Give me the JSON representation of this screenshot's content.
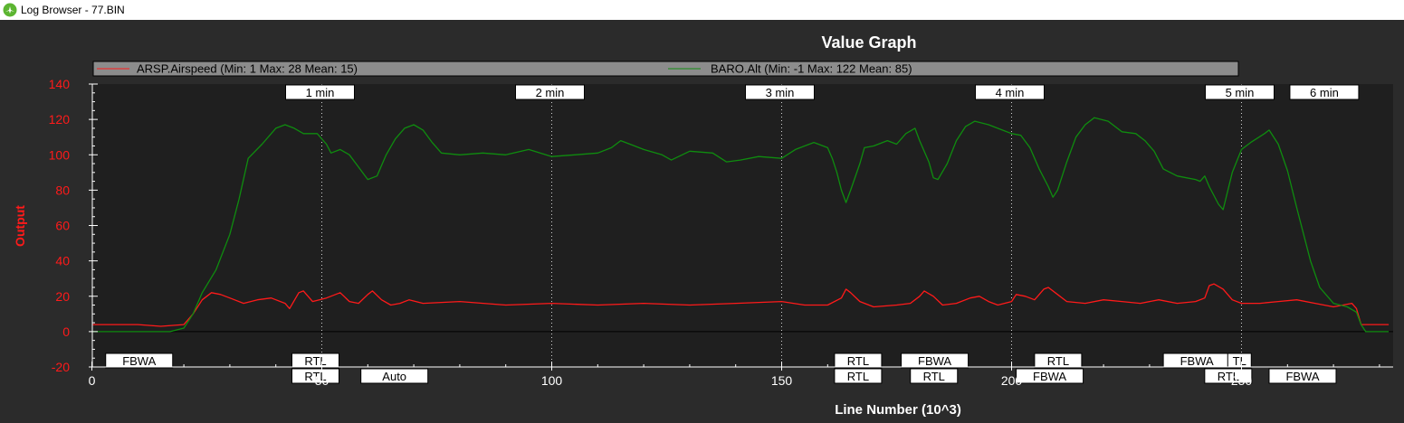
{
  "window": {
    "title": "Log Browser - 77.BIN",
    "icon": "app-icon"
  },
  "colors": {
    "window_bg": "#2b2b2b",
    "plot_bg": "#1f1f1f",
    "airspeed": "#ff1a1a",
    "alt": "#0f8c0f",
    "axis_text": "#ffffff",
    "ylabel_text": "#ff1a1a",
    "legend_bg": "#8c8c8c"
  },
  "chart_data": {
    "type": "line",
    "title": "Value Graph",
    "xlabel": "Line Number (10^3)",
    "ylabel": "Output",
    "xlim": [
      0,
      282
    ],
    "ylim": [
      -20,
      140
    ],
    "xticks": [
      0,
      50,
      100,
      150,
      200,
      250
    ],
    "yticks": [
      -20,
      0,
      20,
      40,
      60,
      80,
      100,
      120,
      140
    ],
    "grid": false,
    "legend_position": "top",
    "series": [
      {
        "name": "ARSP.Airspeed (Min: 1 Max: 28 Mean: 15)",
        "color": "#ff1a1a",
        "points": [
          [
            0,
            4
          ],
          [
            5,
            4
          ],
          [
            10,
            4
          ],
          [
            15,
            3
          ],
          [
            20,
            4
          ],
          [
            22,
            10
          ],
          [
            24,
            18
          ],
          [
            26,
            22
          ],
          [
            28,
            21
          ],
          [
            30,
            19
          ],
          [
            33,
            16
          ],
          [
            36,
            18
          ],
          [
            39,
            19
          ],
          [
            42,
            16
          ],
          [
            43,
            13
          ],
          [
            45,
            22
          ],
          [
            46,
            23
          ],
          [
            48,
            17
          ],
          [
            51,
            19
          ],
          [
            54,
            22
          ],
          [
            56,
            17
          ],
          [
            58,
            16
          ],
          [
            60,
            21
          ],
          [
            61,
            23
          ],
          [
            63,
            18
          ],
          [
            65,
            15
          ],
          [
            67,
            16
          ],
          [
            69,
            18
          ],
          [
            72,
            16
          ],
          [
            80,
            17
          ],
          [
            90,
            15
          ],
          [
            100,
            16
          ],
          [
            110,
            15
          ],
          [
            120,
            16
          ],
          [
            130,
            15
          ],
          [
            140,
            16
          ],
          [
            150,
            17
          ],
          [
            155,
            15
          ],
          [
            160,
            15
          ],
          [
            163,
            19
          ],
          [
            164,
            24
          ],
          [
            165,
            22
          ],
          [
            167,
            17
          ],
          [
            170,
            14
          ],
          [
            175,
            15
          ],
          [
            178,
            16
          ],
          [
            180,
            20
          ],
          [
            181,
            23
          ],
          [
            183,
            20
          ],
          [
            185,
            15
          ],
          [
            188,
            16
          ],
          [
            191,
            19
          ],
          [
            193,
            20
          ],
          [
            195,
            17
          ],
          [
            197,
            15
          ],
          [
            200,
            17
          ],
          [
            201,
            21
          ],
          [
            203,
            20
          ],
          [
            205,
            18
          ],
          [
            207,
            24
          ],
          [
            208,
            25
          ],
          [
            210,
            21
          ],
          [
            212,
            17
          ],
          [
            216,
            16
          ],
          [
            220,
            18
          ],
          [
            224,
            17
          ],
          [
            228,
            16
          ],
          [
            232,
            18
          ],
          [
            236,
            16
          ],
          [
            240,
            17
          ],
          [
            242,
            19
          ],
          [
            243,
            26
          ],
          [
            244,
            27
          ],
          [
            246,
            24
          ],
          [
            248,
            18
          ],
          [
            250,
            16
          ],
          [
            254,
            16
          ],
          [
            258,
            17
          ],
          [
            262,
            18
          ],
          [
            266,
            16
          ],
          [
            270,
            14
          ],
          [
            274,
            16
          ],
          [
            275,
            13
          ],
          [
            276,
            4
          ],
          [
            282,
            4
          ]
        ]
      },
      {
        "name": "BARO.Alt (Min: -1 Max: 122 Mean: 85)",
        "color": "#0f8c0f",
        "points": [
          [
            0,
            0
          ],
          [
            17,
            0
          ],
          [
            20,
            2
          ],
          [
            22,
            10
          ],
          [
            24,
            22
          ],
          [
            27,
            35
          ],
          [
            30,
            55
          ],
          [
            32,
            75
          ],
          [
            34,
            98
          ],
          [
            37,
            106
          ],
          [
            40,
            115
          ],
          [
            42,
            117
          ],
          [
            44,
            115
          ],
          [
            46,
            112
          ],
          [
            49,
            112
          ],
          [
            51,
            106
          ],
          [
            52,
            101
          ],
          [
            54,
            103
          ],
          [
            56,
            100
          ],
          [
            58,
            93
          ],
          [
            60,
            86
          ],
          [
            62,
            88
          ],
          [
            64,
            100
          ],
          [
            66,
            109
          ],
          [
            68,
            115
          ],
          [
            70,
            117
          ],
          [
            72,
            114
          ],
          [
            74,
            107
          ],
          [
            76,
            101
          ],
          [
            80,
            100
          ],
          [
            85,
            101
          ],
          [
            90,
            100
          ],
          [
            95,
            103
          ],
          [
            100,
            99
          ],
          [
            105,
            100
          ],
          [
            110,
            101
          ],
          [
            113,
            104
          ],
          [
            115,
            108
          ],
          [
            117,
            106
          ],
          [
            120,
            103
          ],
          [
            124,
            100
          ],
          [
            126,
            97
          ],
          [
            130,
            102
          ],
          [
            135,
            101
          ],
          [
            138,
            96
          ],
          [
            141,
            97
          ],
          [
            145,
            99
          ],
          [
            150,
            98
          ],
          [
            153,
            103
          ],
          [
            157,
            107
          ],
          [
            160,
            104
          ],
          [
            161,
            98
          ],
          [
            162,
            90
          ],
          [
            163,
            80
          ],
          [
            164,
            73
          ],
          [
            165,
            80
          ],
          [
            167,
            95
          ],
          [
            168,
            104
          ],
          [
            170,
            105
          ],
          [
            173,
            108
          ],
          [
            175,
            106
          ],
          [
            177,
            112
          ],
          [
            179,
            115
          ],
          [
            180,
            108
          ],
          [
            182,
            96
          ],
          [
            183,
            87
          ],
          [
            184,
            86
          ],
          [
            186,
            95
          ],
          [
            188,
            108
          ],
          [
            190,
            116
          ],
          [
            192,
            119
          ],
          [
            195,
            117
          ],
          [
            198,
            114
          ],
          [
            200,
            112
          ],
          [
            202,
            111
          ],
          [
            204,
            104
          ],
          [
            206,
            92
          ],
          [
            208,
            82
          ],
          [
            209,
            76
          ],
          [
            210,
            80
          ],
          [
            212,
            96
          ],
          [
            214,
            110
          ],
          [
            216,
            117
          ],
          [
            218,
            121
          ],
          [
            221,
            119
          ],
          [
            224,
            113
          ],
          [
            227,
            112
          ],
          [
            229,
            108
          ],
          [
            231,
            102
          ],
          [
            233,
            92
          ],
          [
            236,
            88
          ],
          [
            238,
            87
          ],
          [
            240,
            86
          ],
          [
            241,
            85
          ],
          [
            242,
            88
          ],
          [
            243,
            82
          ],
          [
            245,
            72
          ],
          [
            246,
            69
          ],
          [
            248,
            90
          ],
          [
            250,
            103
          ],
          [
            252,
            107
          ],
          [
            255,
            112
          ],
          [
            256,
            114
          ],
          [
            258,
            106
          ],
          [
            260,
            91
          ],
          [
            262,
            70
          ],
          [
            265,
            40
          ],
          [
            267,
            25
          ],
          [
            270,
            16
          ],
          [
            273,
            14
          ],
          [
            275,
            11
          ],
          [
            276,
            4
          ],
          [
            277,
            0
          ],
          [
            282,
            0
          ]
        ]
      }
    ],
    "time_markers": [
      {
        "label": "1 min",
        "x": 50
      },
      {
        "label": "2 min",
        "x": 100
      },
      {
        "label": "3 min",
        "x": 150
      },
      {
        "label": "4 min",
        "x": 200
      },
      {
        "label": "5 min",
        "x": 250
      },
      {
        "label": "6 min",
        "x": 268
      }
    ],
    "mode_annotations": [
      {
        "label": "FBWA",
        "x": 3,
        "row": 1
      },
      {
        "label": "RTL",
        "x": 43.5,
        "row": 1
      },
      {
        "label": "RTL",
        "x": 43.5,
        "row": 2
      },
      {
        "label": "Auto",
        "x": 58.5,
        "row": 2
      },
      {
        "label": "RTL",
        "x": 161.5,
        "row": 1
      },
      {
        "label": "RTL",
        "x": 161.5,
        "row": 2
      },
      {
        "label": "FBWA",
        "x": 176,
        "row": 1
      },
      {
        "label": "RTL",
        "x": 178,
        "row": 2
      },
      {
        "label": "RTL",
        "x": 205,
        "row": 1
      },
      {
        "label": "FBWA",
        "x": 201,
        "row": 2
      },
      {
        "label": "FBWA",
        "x": 233,
        "row": 1
      },
      {
        "label": "TL",
        "x": 247,
        "row": 1
      },
      {
        "label": "RTL",
        "x": 242,
        "row": 2
      },
      {
        "label": "FBWA",
        "x": 256,
        "row": 2
      }
    ]
  }
}
